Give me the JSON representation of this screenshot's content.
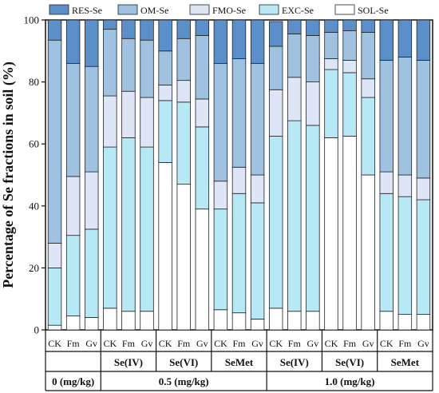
{
  "chart_data": {
    "type": "bar",
    "stacked": true,
    "ylabel": "Percentage of Se fractions in soil (%)",
    "ylim": [
      0,
      100
    ],
    "yticks": [
      "0",
      "20",
      "40",
      "60",
      "80",
      "100"
    ],
    "legend": {
      "placement": "top",
      "entries": [
        "RES-Se",
        "OM-Se",
        "FMO-Se",
        "EXC-Se",
        "SOL-Se"
      ]
    },
    "colors": {
      "SOL-Se": "#ffffff",
      "EXC-Se": "#b7e8f5",
      "FMO-Se": "#dde5f6",
      "OM-Se": "#9fc2e1",
      "RES-Se": "#5b8fc9"
    },
    "categories": [
      "CK",
      "Fm",
      "Gv",
      "CK",
      "Fm",
      "Gv",
      "CK",
      "Fm",
      "Gv",
      "CK",
      "Fm",
      "Gv",
      "CK",
      "Fm",
      "Gv",
      "CK",
      "Fm",
      "Gv",
      "CK",
      "Fm",
      "Gv"
    ],
    "series": [
      {
        "name": "SOL-Se",
        "values": [
          1.5,
          4.5,
          4,
          7,
          6,
          6,
          54,
          47,
          39,
          6.5,
          5.5,
          3.5,
          7,
          6,
          6,
          62,
          62.5,
          50,
          6,
          5,
          5
        ]
      },
      {
        "name": "EXC-Se",
        "values": [
          18.5,
          26,
          28.5,
          52,
          56,
          53,
          20,
          26.5,
          26.5,
          32.5,
          38.5,
          37.5,
          55.5,
          61.5,
          60,
          22,
          20.5,
          25,
          38,
          38,
          37
        ]
      },
      {
        "name": "FMO-Se",
        "values": [
          8,
          19,
          18.5,
          16.5,
          15,
          16,
          5,
          7,
          9,
          9,
          8.5,
          9,
          15,
          14,
          14,
          3.5,
          4,
          6,
          7,
          7,
          7
        ]
      },
      {
        "name": "OM-Se",
        "values": [
          65.5,
          36.5,
          34,
          21.5,
          17,
          18.5,
          11,
          13.5,
          20.5,
          38,
          35,
          36,
          14,
          14,
          15,
          8.5,
          9.5,
          15,
          36,
          38,
          38
        ]
      },
      {
        "name": "RES-Se",
        "values": [
          6.5,
          14,
          15,
          3,
          6,
          6.5,
          10,
          6,
          5,
          14,
          12.5,
          14,
          8,
          4.5,
          5,
          4,
          3.5,
          4,
          13,
          12,
          13
        ]
      }
    ],
    "groups_row1": [
      {
        "label": "",
        "span": [
          0,
          2
        ]
      },
      {
        "label": "Se(IV)",
        "span": [
          3,
          5
        ]
      },
      {
        "label": "Se(VI)",
        "span": [
          6,
          8
        ]
      },
      {
        "label": "SeMet",
        "span": [
          9,
          11
        ]
      },
      {
        "label": "Se(IV)",
        "span": [
          12,
          14
        ]
      },
      {
        "label": "Se(VI)",
        "span": [
          15,
          17
        ]
      },
      {
        "label": "SeMet",
        "span": [
          18,
          20
        ]
      }
    ],
    "groups_row2": [
      {
        "label": "0 (mg/kg)",
        "span": [
          0,
          2
        ]
      },
      {
        "label": "0.5 (mg/kg)",
        "span": [
          3,
          11
        ]
      },
      {
        "label": "1.0 (mg/kg)",
        "span": [
          12,
          20
        ]
      }
    ]
  }
}
